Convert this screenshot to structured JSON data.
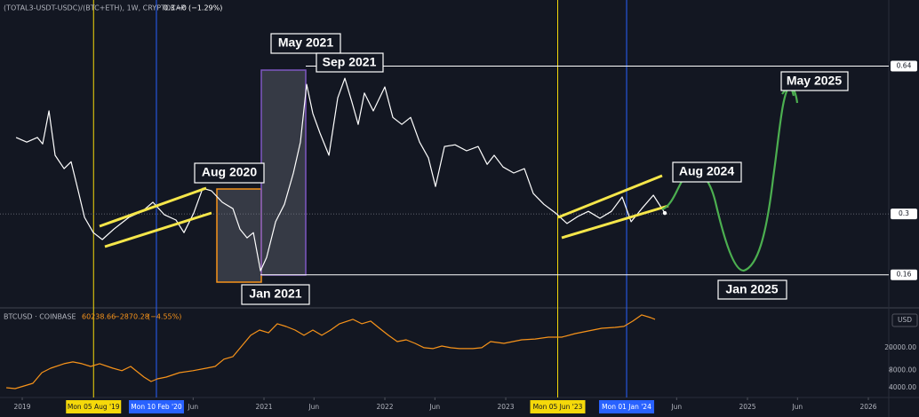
{
  "chart_data": [
    {
      "type": "line",
      "title": "(TOTAL3-USDT-USDC)/(BTC+ETH), 1W, CRYPTOCAP",
      "last": "0.3",
      "change": "−0",
      "change_pct": "(−1.29%)",
      "xlim": [
        2018.816,
        2026.169
      ],
      "xticks": [
        {
          "value": 2019,
          "label": "2019"
        },
        {
          "value": 2020.414,
          "label": "Jun"
        },
        {
          "value": 2021,
          "label": "2021"
        },
        {
          "value": 2021.414,
          "label": "Jun"
        },
        {
          "value": 2022,
          "label": "2022"
        },
        {
          "value": 2022.414,
          "label": "Jun"
        },
        {
          "value": 2023,
          "label": "2023"
        },
        {
          "value": 2024.414,
          "label": "Jun"
        },
        {
          "value": 2025,
          "label": "2025"
        },
        {
          "value": 2025.414,
          "label": "Jun"
        },
        {
          "value": 2026,
          "label": "2026"
        }
      ],
      "markers": [
        {
          "x": 2019.59,
          "label": "Mon 05 Aug '19",
          "color": "#f5d90a"
        },
        {
          "x": 2020.11,
          "label": "Mon 10 Feb '20",
          "color": "#2962ff"
        },
        {
          "x": 2023.43,
          "label": "Mon 05 Jun '23",
          "color": "#f5d90a"
        },
        {
          "x": 2024.0,
          "label": "Mon 01 Jan '24",
          "color": "#2962ff"
        }
      ],
      "ylim": [
        0.088,
        0.792
      ],
      "yticks": [
        0.64,
        0.3,
        0.16
      ],
      "annotations": [
        "May 2021",
        "Sep 2021",
        "Aug 2020",
        "Jan 2021",
        "Aug 2024",
        "May 2025",
        "Jan 2025"
      ],
      "series": [
        {
          "name": "(TOTAL3-USDT-USDC)/(BTC+ETH)",
          "color": "#ffffff",
          "x": [
            2018.949,
            2019.037,
            2019.125,
            2019.169,
            2019.221,
            2019.272,
            2019.346,
            2019.404,
            2019.463,
            2019.515,
            2019.588,
            2019.662,
            2019.757,
            2019.882,
            2019.993,
            2020.081,
            2020.176,
            2020.272,
            2020.338,
            2020.419,
            2020.493,
            2020.566,
            2020.654,
            2020.743,
            2020.801,
            2020.86,
            2020.912,
            2020.971,
            2021.022,
            2021.096,
            2021.169,
            2021.243,
            2021.301,
            2021.353,
            2021.404,
            2021.463,
            2021.537,
            2021.61,
            2021.669,
            2021.728,
            2021.779,
            2021.831,
            2021.904,
            2022.0,
            2022.066,
            2022.14,
            2022.213,
            2022.287,
            2022.36,
            2022.419,
            2022.493,
            2022.581,
            2022.676,
            2022.772,
            2022.846,
            2022.904,
            2022.978,
            2023.066,
            2023.154,
            2023.228,
            2023.316,
            2023.412,
            2023.507,
            2023.596,
            2023.684,
            2023.779,
            2023.875,
            2023.963,
            2024.037,
            2024.125,
            2024.221,
            2024.316
          ],
          "values": [
            0.476,
            0.465,
            0.476,
            0.461,
            0.537,
            0.435,
            0.404,
            0.42,
            0.353,
            0.292,
            0.257,
            0.241,
            0.265,
            0.292,
            0.306,
            0.327,
            0.298,
            0.286,
            0.257,
            0.302,
            0.359,
            0.353,
            0.327,
            0.312,
            0.265,
            0.245,
            0.257,
            0.169,
            0.2,
            0.282,
            0.322,
            0.394,
            0.465,
            0.598,
            0.531,
            0.486,
            0.435,
            0.567,
            0.612,
            0.557,
            0.506,
            0.578,
            0.537,
            0.592,
            0.522,
            0.506,
            0.522,
            0.465,
            0.429,
            0.363,
            0.455,
            0.459,
            0.445,
            0.455,
            0.414,
            0.435,
            0.408,
            0.394,
            0.404,
            0.347,
            0.322,
            0.302,
            0.278,
            0.294,
            0.306,
            0.29,
            0.306,
            0.339,
            0.282,
            0.312,
            0.343,
            0.302
          ]
        }
      ]
    },
    {
      "type": "line",
      "title": "BTCUSD · COINBASE",
      "last": "60238.66",
      "change": "−2870.28",
      "change_pct": "(−4.55%)",
      "ylabel": "USD",
      "log_scale": true,
      "ylim": [
        2700,
        83000
      ],
      "yticks": [
        {
          "value": 20000,
          "label": "20000.00"
        },
        {
          "value": 8000,
          "label": "8000.00"
        },
        {
          "value": 4000,
          "label": "4000.00"
        }
      ],
      "series": [
        {
          "name": "BTCUSD",
          "color": "#f7931a",
          "x": [
            2018.868,
            2018.941,
            2019.015,
            2019.088,
            2019.162,
            2019.235,
            2019.346,
            2019.419,
            2019.493,
            2019.566,
            2019.64,
            2019.75,
            2019.824,
            2019.897,
            2020.007,
            2020.066,
            2020.118,
            2020.191,
            2020.301,
            2020.412,
            2020.522,
            2020.596,
            2020.669,
            2020.743,
            2020.816,
            2020.89,
            2020.963,
            2021.037,
            2021.11,
            2021.184,
            2021.257,
            2021.331,
            2021.404,
            2021.478,
            2021.551,
            2021.625,
            2021.735,
            2021.809,
            2021.882,
            2021.956,
            2022.029,
            2022.103,
            2022.176,
            2022.25,
            2022.324,
            2022.397,
            2022.471,
            2022.544,
            2022.618,
            2022.728,
            2022.801,
            2022.875,
            2022.985,
            2023.132,
            2023.243,
            2023.353,
            2023.463,
            2023.574,
            2023.684,
            2023.794,
            2023.904,
            2023.978,
            2024.051,
            2024.125,
            2024.199,
            2024.235
          ],
          "values": [
            4000,
            3860,
            4290,
            4780,
            7330,
            8770,
            10500,
            11300,
            10500,
            9420,
            10500,
            8770,
            7930,
            9420,
            6140,
            5130,
            5720,
            6140,
            7330,
            7930,
            8770,
            9420,
            12600,
            14000,
            21400,
            32900,
            40700,
            36400,
            52300,
            46900,
            40700,
            32900,
            40700,
            32900,
            40700,
            52300,
            62600,
            52300,
            58400,
            43700,
            32900,
            25600,
            27500,
            23800,
            20000,
            19300,
            21400,
            20000,
            19300,
            19300,
            20000,
            25600,
            23800,
            27500,
            28400,
            30600,
            30600,
            35200,
            39200,
            43700,
            45300,
            47000,
            58400,
            74800,
            67000,
            62600
          ]
        }
      ]
    }
  ]
}
